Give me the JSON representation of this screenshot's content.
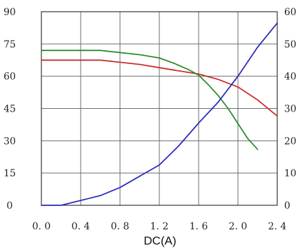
{
  "chart_data": {
    "type": "line",
    "xlabel": "DC(A)",
    "ylabel": "",
    "y2label": "",
    "xlim": [
      0,
      2.4
    ],
    "ylim": [
      0,
      90
    ],
    "y2lim": [
      0,
      60
    ],
    "x_ticks": [
      "0. 0",
      "0. 4",
      "0. 8",
      "1. 2",
      "1. 6",
      "2. 0",
      "2. 4"
    ],
    "y_ticks": [
      "0",
      "15",
      "30",
      "45",
      "60",
      "75",
      "90"
    ],
    "y2_ticks": [
      "0",
      "10",
      "20",
      "30",
      "40",
      "50",
      "60"
    ],
    "grid": true,
    "colors": {
      "grid": "#6b6b6b",
      "axis": "#333333",
      "red": "#cc2b2b",
      "green": "#2e8b2e",
      "blue": "#2b2bbb"
    },
    "series": [
      {
        "color": "red",
        "axis": "left",
        "x": [
          0,
          0.4,
          0.6,
          0.8,
          1.0,
          1.2,
          1.4,
          1.6,
          1.8,
          2.0,
          2.2,
          2.4
        ],
        "y": [
          67.5,
          67.5,
          67.5,
          66.5,
          65.5,
          64,
          62.5,
          61,
          58.5,
          55,
          49,
          41.5
        ]
      },
      {
        "color": "green",
        "axis": "left",
        "x": [
          0,
          0.4,
          0.6,
          0.8,
          1.0,
          1.2,
          1.35,
          1.5,
          1.6,
          1.7,
          1.8,
          1.9,
          2.0,
          2.1,
          2.2
        ],
        "y": [
          72,
          72,
          72,
          71,
          70,
          68.5,
          66,
          63,
          60.5,
          56,
          51,
          45,
          38,
          31,
          26
        ]
      },
      {
        "color": "blue",
        "axis": "right",
        "x": [
          0,
          0.2,
          0.4,
          0.6,
          0.8,
          1.0,
          1.2,
          1.4,
          1.6,
          1.8,
          2.0,
          2.2,
          2.4
        ],
        "y": [
          0,
          0,
          1.5,
          3,
          5.5,
          9,
          12.5,
          18.5,
          25.5,
          32,
          40,
          49,
          56.5
        ]
      }
    ]
  }
}
